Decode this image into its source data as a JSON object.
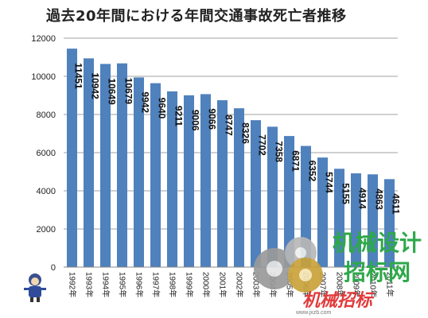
{
  "chart_data": {
    "type": "bar",
    "title": "過去20年間における年間交通事故死亡者推移",
    "xlabel": "",
    "ylabel": "",
    "ylim": [
      0,
      12000
    ],
    "yticks": [
      0,
      2000,
      4000,
      6000,
      8000,
      10000,
      12000
    ],
    "grid": true,
    "legend": "none",
    "bar_color": "#4f81bd",
    "categories": [
      "1992年",
      "1993年",
      "1994年",
      "1995年",
      "1996年",
      "1997年",
      "1998年",
      "1999年",
      "2000年",
      "2001年",
      "2002年",
      "2003年",
      "2004年",
      "2005年",
      "2006年",
      "2007年",
      "2008年",
      "2009年",
      "2010年",
      "2011年"
    ],
    "values": [
      11451,
      10942,
      10649,
      10679,
      9942,
      9640,
      9211,
      9006,
      9066,
      8747,
      8326,
      7702,
      7358,
      6871,
      6352,
      5744,
      5155,
      4914,
      4863,
      4611
    ]
  },
  "watermark": {
    "line1": "机械设计",
    "line2": "招标网",
    "line3": "机械招标",
    "url": "www.jxzb.com"
  }
}
